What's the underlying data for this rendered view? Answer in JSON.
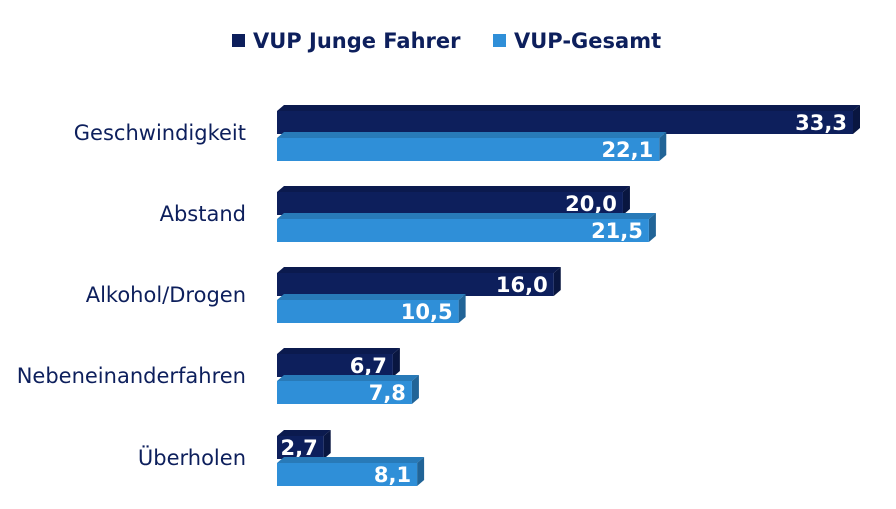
{
  "chart_data": {
    "type": "bar",
    "orientation": "horizontal",
    "bar_style": "3d",
    "categories": [
      "Geschwindigkeit",
      "Abstand",
      "Alkohol/Drogen",
      "Nebeneinanderfahren",
      "Überholen"
    ],
    "series": [
      {
        "name": "VUP Junge Fahrer",
        "color": "#0d1f5c",
        "values": [
          33.3,
          20.0,
          16.0,
          6.7,
          2.7
        ],
        "labels": [
          "33,3",
          "20,0",
          "16,0",
          "6,7",
          "2,7"
        ]
      },
      {
        "name": "VUP-Gesamt",
        "color": "#2f8fd8",
        "values": [
          22.1,
          21.5,
          10.5,
          7.8,
          8.1
        ],
        "labels": [
          "22,1",
          "21,5",
          "10,5",
          "7,8",
          "8,1"
        ]
      }
    ],
    "title": "",
    "xlabel": "",
    "ylabel": "",
    "xlim": [
      0,
      33.3
    ],
    "grid": false,
    "legend_position": "top-center"
  }
}
